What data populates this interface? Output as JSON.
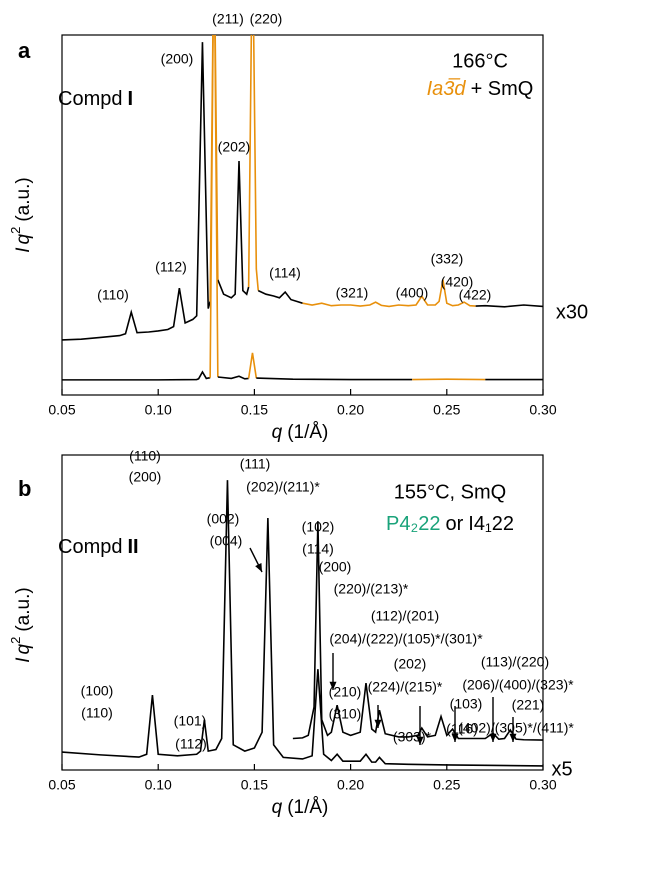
{
  "chart_data": [
    {
      "type": "line",
      "panel_label": "a",
      "compound": [
        "Compd",
        "I"
      ],
      "temperature": "166°C",
      "phase": [
        "Ia3̅d",
        "+ SmQ"
      ],
      "x_label": [
        "q",
        "(1/Å)"
      ],
      "y_label": [
        "I",
        "q",
        "2",
        "(a.u.)"
      ],
      "xlim": [
        0.05,
        0.3
      ],
      "xticks": [
        0.05,
        {
          "value": 0.1,
          "label": "0.10"
        },
        0.15,
        {
          "value": 0.2,
          "label": "0.20"
        },
        0.25,
        {
          "value": 0.3,
          "label": "0.30"
        }
      ],
      "ylim": [
        0,
        100
      ],
      "series": [
        {
          "color": "#000000",
          "x": [
            0.05,
            0.06,
            0.07,
            0.08,
            0.083,
            0.086,
            0.089,
            0.095,
            0.1,
            0.105,
            0.108,
            0.111,
            0.114,
            0.118,
            0.12,
            0.123,
            0.126,
            0.127
          ],
          "values": [
            15.3,
            15.5,
            16,
            16.5,
            17,
            23,
            17.3,
            17.5,
            17.8,
            18.2,
            19,
            29.7,
            20,
            21,
            22,
            98,
            24,
            26
          ]
        },
        {
          "color": "#e8900c",
          "x": [
            0.127,
            0.129,
            0.131
          ],
          "values": [
            26,
            130,
            32
          ]
        },
        {
          "color": "#000000",
          "x": [
            0.131,
            0.134,
            0.138,
            0.14,
            0.142,
            0.144,
            0.146,
            0.147
          ],
          "values": [
            32,
            28,
            27,
            28,
            65,
            29,
            28,
            30
          ]
        },
        {
          "color": "#e8900c",
          "x": [
            0.147,
            0.149,
            0.151,
            0.152
          ],
          "values": [
            30,
            130,
            35,
            29
          ]
        },
        {
          "color": "#000000",
          "x": [
            0.152,
            0.156,
            0.16,
            0.163,
            0.166,
            0.169,
            0.172,
            0.175
          ],
          "values": [
            29,
            28,
            27.5,
            27,
            28.6,
            26.5,
            26,
            25.5
          ]
        },
        {
          "color": "#e8900c",
          "x": [
            0.175,
            0.18,
            0.185,
            0.19,
            0.195,
            0.2,
            0.205,
            0.21,
            0.213,
            0.216,
            0.22,
            0.225,
            0.23,
            0.234,
            0.237,
            0.24,
            0.244,
            0.246,
            0.248,
            0.25,
            0.253,
            0.256,
            0.259,
            0.262,
            0.265
          ],
          "values": [
            25.5,
            25,
            25.5,
            24.8,
            25,
            25,
            24.7,
            25,
            25.8,
            24.9,
            24.6,
            25,
            24.8,
            25,
            27.4,
            25,
            25,
            26,
            32,
            25.5,
            24.8,
            25,
            25.8,
            24.8,
            24.7
          ]
        },
        {
          "color": "#000000",
          "x": [
            0.265,
            0.27,
            0.28,
            0.29,
            0.3
          ],
          "values": [
            24.7,
            24.8,
            24.5,
            25,
            24.6
          ]
        },
        {
          "color": "#000000",
          "x": [
            0.05,
            0.08,
            0.1,
            0.12,
            0.121,
            0.123,
            0.125,
            0.127
          ],
          "values": [
            4.2,
            4.2,
            4.2,
            4.3,
            4.5,
            6.4,
            4.6,
            4.8
          ]
        },
        {
          "color": "#e8900c",
          "x": [
            0.127,
            0.129,
            0.131
          ],
          "values": [
            4.8,
            130,
            5
          ]
        },
        {
          "color": "#000000",
          "x": [
            0.131,
            0.138,
            0.142,
            0.145,
            0.147
          ],
          "values": [
            5,
            4.6,
            5.2,
            4.5,
            4.6
          ]
        },
        {
          "color": "#e8900c",
          "x": [
            0.147,
            0.149,
            0.151
          ],
          "values": [
            4.6,
            11.7,
            4.7
          ]
        },
        {
          "color": "#000000",
          "x": [
            0.151,
            0.17,
            0.2,
            0.232
          ],
          "values": [
            4.7,
            4.4,
            4.3,
            4.3
          ]
        },
        {
          "color": "#e8900c",
          "x": [
            0.232,
            0.25,
            0.27
          ],
          "values": [
            4.3,
            4.4,
            4.3
          ]
        },
        {
          "color": "#000000",
          "x": [
            0.27,
            0.3
          ],
          "values": [
            4.3,
            4.3
          ]
        }
      ],
      "annotations": [
        {
          "text": "(110)",
          "color": "#000000"
        },
        {
          "text": "(112)",
          "color": "#000000"
        },
        {
          "text": "(200)",
          "color": "#000000"
        },
        {
          "text": "(211)",
          "color": "#e8900c"
        },
        {
          "text": "(220)",
          "color": "#e8900c"
        },
        {
          "text": "(202)",
          "color": "#000000"
        },
        {
          "text": "(114)",
          "color": "#000000"
        },
        {
          "text": "(321)",
          "color": "#e8900c"
        },
        {
          "text": "(400)",
          "color": "#e8900c"
        },
        {
          "text": "(420)",
          "color": "#e8900c"
        },
        {
          "text": "(332)",
          "color": "#e8900c"
        },
        {
          "text": "(422)",
          "color": "#e8900c"
        },
        {
          "text": "x30",
          "color": "#000000"
        }
      ]
    },
    {
      "type": "line",
      "panel_label": "b",
      "compound": [
        "Compd",
        "II"
      ],
      "temperature": "155°C, SmQ",
      "phase": [
        "P4₂22",
        "or",
        "I4₁22"
      ],
      "x_label": [
        "q",
        "(1/Å)"
      ],
      "y_label": [
        "I",
        "q",
        "2",
        "(a.u.)"
      ],
      "xlim": [
        0.05,
        0.3
      ],
      "xticks": [
        0.05,
        {
          "value": 0.1,
          "label": "0.10"
        },
        0.15,
        {
          "value": 0.2,
          "label": "0.20"
        },
        0.25,
        {
          "value": 0.3,
          "label": "0.30"
        }
      ],
      "ylim": [
        0,
        100
      ],
      "series": [
        {
          "color": "#000000",
          "x": [
            0.05,
            0.07,
            0.09,
            0.094,
            0.097,
            0.1,
            0.11,
            0.12,
            0.122,
            0.124,
            0.126,
            0.13,
            0.133,
            0.136,
            0.139,
            0.145,
            0.15,
            0.154,
            0.157,
            0.16,
            0.165,
            0.175,
            0.18,
            0.183,
            0.186,
            0.19,
            0.193,
            0.196,
            0.205,
            0.208,
            0.211,
            0.213,
            0.215,
            0.218,
            0.23,
            0.25,
            0.27,
            0.3
          ],
          "values": [
            5.7,
            4.8,
            4.1,
            5,
            23.8,
            5,
            4.5,
            5,
            6,
            15.9,
            6,
            6.5,
            10,
            92,
            8,
            6,
            7,
            12,
            80,
            8,
            4,
            3.5,
            4.5,
            32,
            5,
            3,
            5,
            2.8,
            2.8,
            5,
            2.5,
            2.5,
            4,
            2,
            1.8,
            1.6,
            1.5,
            1.3
          ]
        },
        {
          "color": "#000000",
          "x": [
            0.17,
            0.175,
            0.178,
            0.181,
            0.183,
            0.185,
            0.188,
            0.19,
            0.193,
            0.196,
            0.2,
            0.205,
            0.208,
            0.211,
            0.213,
            0.215,
            0.218,
            0.225,
            0.23,
            0.235,
            0.237,
            0.24,
            0.244,
            0.247,
            0.25,
            0.253,
            0.256,
            0.26,
            0.265,
            0.27,
            0.274,
            0.277,
            0.28,
            0.283,
            0.286,
            0.29,
            0.3
          ],
          "values": [
            10,
            10.2,
            11,
            20,
            79,
            16,
            11,
            12,
            20.6,
            12,
            11,
            12,
            27.6,
            13,
            12,
            19,
            11.5,
            10.5,
            10.5,
            11,
            13.3,
            10.5,
            11,
            17,
            11,
            13,
            10,
            10,
            10,
            10,
            11.7,
            9.8,
            10,
            12.7,
            9.8,
            9.6,
            9.5
          ]
        }
      ],
      "annotations": [
        {
          "text": "(110)",
          "color": "#1aa37a"
        },
        {
          "text": "(200)",
          "color": "#000000"
        },
        {
          "text": "(111)",
          "color": "#1aa37a"
        },
        {
          "text": "(202)/(211)*",
          "color": "#000000"
        },
        {
          "text": "(002)",
          "color": "#1aa37a"
        },
        {
          "text": "(004)",
          "color": "#000000"
        },
        {
          "text": "(102)",
          "color": "#1aa37a"
        },
        {
          "text": "(114)",
          "color": "#000000"
        },
        {
          "text": "(200)",
          "color": "#1aa37a"
        },
        {
          "text": "(220)/(213)*",
          "color": "#000000"
        },
        {
          "text": "(112)/(201)",
          "color": "#1aa37a"
        },
        {
          "text": "(204)/(222)/(105)*/(301)*",
          "color": "#000000"
        },
        {
          "text": "(202)",
          "color": "#1aa37a"
        },
        {
          "text": "(224)/(215)*",
          "color": "#000000"
        },
        {
          "text": "(113)/(220)",
          "color": "#1aa37a"
        },
        {
          "text": "(206)/(400)/(323)*",
          "color": "#000000"
        },
        {
          "text": "(210)",
          "color": "#1aa37a"
        },
        {
          "text": "(310)",
          "color": "#000000"
        },
        {
          "text": "(303)*",
          "color": "#000000"
        },
        {
          "text": "(103)",
          "color": "#1aa37a"
        },
        {
          "text": "(116)",
          "color": "#000000"
        },
        {
          "text": "(221)",
          "color": "#1aa37a"
        },
        {
          "text": "(402)/(305)*/(411)*",
          "color": "#000000"
        },
        {
          "text": "(100)",
          "color": "#1aa37a"
        },
        {
          "text": "(110)",
          "color": "#000000"
        },
        {
          "text": "(101)",
          "color": "#1aa37a"
        },
        {
          "text": "(112)",
          "color": "#000000"
        },
        {
          "text": "x5",
          "color": "#000000"
        }
      ]
    }
  ]
}
